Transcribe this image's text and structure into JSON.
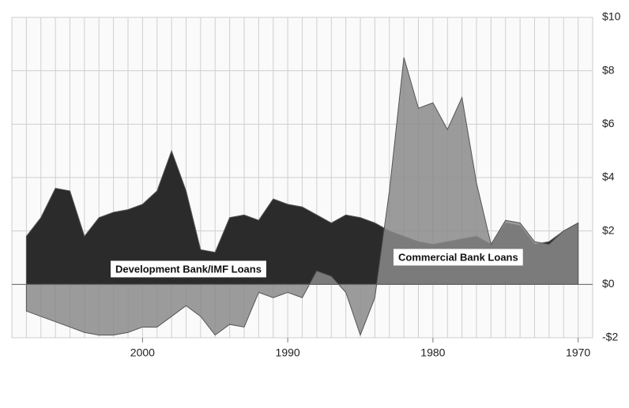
{
  "chart_data": {
    "type": "area",
    "x": [
      1970,
      1971,
      1972,
      1973,
      1974,
      1975,
      1976,
      1977,
      1978,
      1979,
      1980,
      1981,
      1982,
      1983,
      1984,
      1985,
      1986,
      1987,
      1988,
      1989,
      1990,
      1991,
      1992,
      1993,
      1994,
      1995,
      1996,
      1997,
      1998,
      1999,
      2000,
      2001,
      2002,
      2003,
      2004,
      2005,
      2006,
      2007,
      2008
    ],
    "series": [
      {
        "name": "Development Bank/IMF Loans",
        "color": "#2b2b2b",
        "values": [
          2.3,
          2.0,
          1.6,
          1.5,
          2.2,
          2.3,
          1.5,
          1.8,
          1.7,
          1.6,
          1.5,
          1.6,
          1.8,
          2.0,
          2.3,
          2.5,
          2.6,
          2.3,
          2.6,
          2.9,
          3.0,
          3.2,
          2.4,
          2.6,
          2.5,
          1.2,
          1.3,
          3.5,
          5.0,
          3.5,
          3.0,
          2.8,
          2.7,
          2.5,
          1.8,
          3.5,
          3.6,
          2.5,
          1.8
        ]
      },
      {
        "name": "Commercial Bank Loans",
        "color": "#8a8a8a",
        "values": [
          2.3,
          2.0,
          1.5,
          1.6,
          2.3,
          2.4,
          1.5,
          3.8,
          7.0,
          5.8,
          6.8,
          6.6,
          8.5,
          3.5,
          -0.5,
          -1.9,
          -0.3,
          0.3,
          0.5,
          -0.5,
          -0.3,
          -0.5,
          -0.3,
          -1.6,
          -1.5,
          -1.9,
          -1.2,
          -0.8,
          -1.2,
          -1.6,
          -1.6,
          -1.8,
          -1.9,
          -1.9,
          -1.8,
          -1.6,
          -1.4,
          -1.2,
          -1.0
        ]
      }
    ],
    "xlim": [
      2009,
      1969
    ],
    "xticks": [
      2000,
      1990,
      1980,
      1970
    ],
    "ylim": [
      -2,
      10
    ],
    "yticks": [
      {
        "value": -2,
        "label": "-$2"
      },
      {
        "value": 0,
        "label": "$0"
      },
      {
        "value": 2,
        "label": "$2"
      },
      {
        "value": 4,
        "label": "$4"
      },
      {
        "value": 6,
        "label": "$6"
      },
      {
        "value": 8,
        "label": "$8"
      },
      {
        "value": 10,
        "label": "$10"
      }
    ],
    "grid": true
  }
}
